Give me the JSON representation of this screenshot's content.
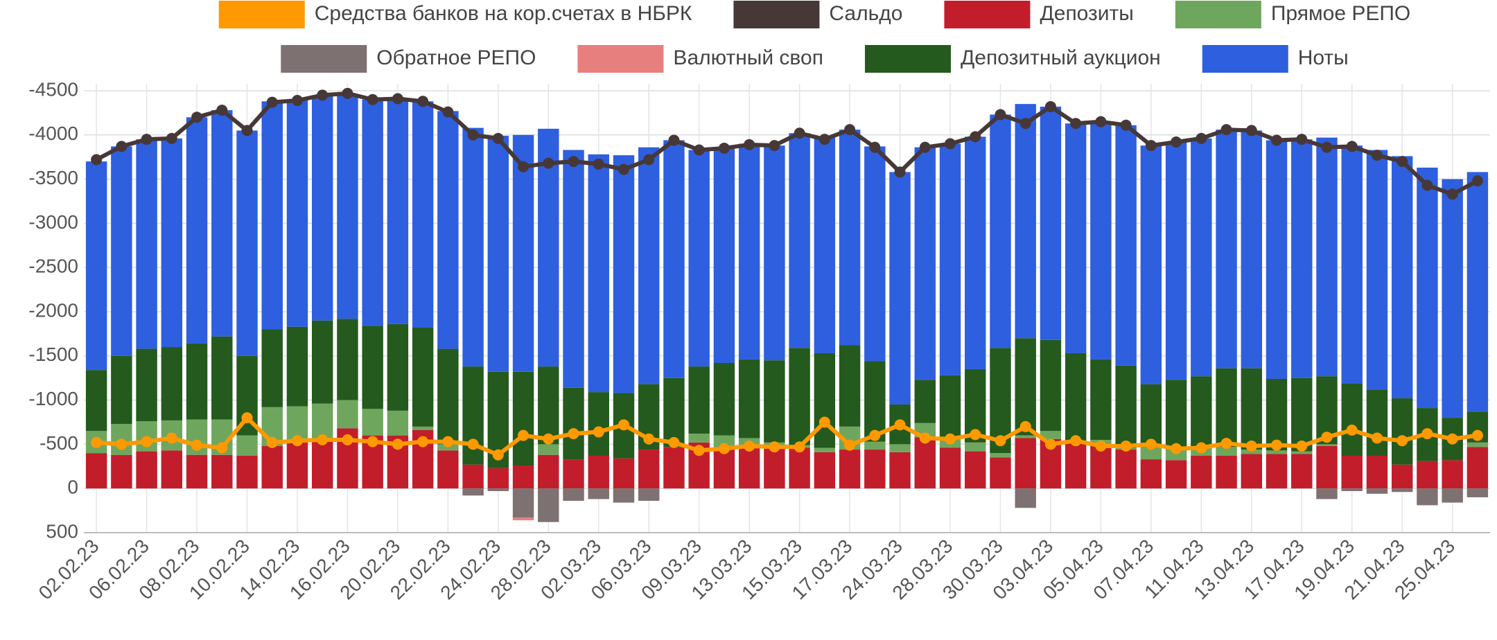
{
  "chart_data": {
    "type": "bar",
    "stacked": true,
    "grid": true,
    "categories": [
      "02.02.23",
      null,
      "06.02.23",
      null,
      "08.02.23",
      null,
      "10.02.23",
      null,
      "14.02.23",
      null,
      "16.02.23",
      null,
      "20.02.23",
      null,
      "22.02.23",
      null,
      "24.02.23",
      null,
      "28.02.23",
      null,
      "02.03.23",
      null,
      "06.03.23",
      null,
      "09.03.23",
      null,
      "13.03.23",
      null,
      "15.03.23",
      null,
      "17.03.23",
      null,
      "24.03.23",
      null,
      "28.03.23",
      null,
      "30.03.23",
      null,
      "03.04.23",
      null,
      "05.04.23",
      null,
      "07.04.23",
      null,
      "11.04.23",
      null,
      "13.04.23",
      null,
      "17.04.23",
      null,
      "19.04.23",
      null,
      "21.04.23",
      null,
      "25.04.23",
      null
    ],
    "ylim": [
      500,
      -4500
    ],
    "yticks": [
      -4500,
      -4000,
      -3500,
      -3000,
      -2500,
      -2000,
      -1500,
      -1000,
      -500,
      0,
      500
    ],
    "series": [
      {
        "name": "Средства банков на кор.счетах в НБРК",
        "type": "line",
        "color": "#ff9900",
        "values": [
          -520,
          -500,
          -530,
          -570,
          -490,
          -460,
          -800,
          -520,
          -540,
          -550,
          -550,
          -530,
          -500,
          -530,
          -530,
          -500,
          -380,
          -600,
          -560,
          -620,
          -640,
          -720,
          -560,
          -520,
          -430,
          -450,
          -480,
          -470,
          -470,
          -750,
          -490,
          -600,
          -720,
          -570,
          -560,
          -610,
          -540,
          -700,
          -500,
          -540,
          -480,
          -480,
          -500,
          -450,
          -460,
          -510,
          -480,
          -490,
          -480,
          -580,
          -660,
          -570,
          -540,
          -620,
          -560,
          -600
        ]
      },
      {
        "name": "Сальдо",
        "type": "line",
        "color": "#473838",
        "values": [
          -3720,
          -3870,
          -3950,
          -3960,
          -4200,
          -4280,
          -4050,
          -4370,
          -4390,
          -4450,
          -4470,
          -4400,
          -4410,
          -4380,
          -4260,
          -4000,
          -3960,
          -3640,
          -3680,
          -3700,
          -3670,
          -3610,
          -3720,
          -3940,
          -3830,
          -3850,
          -3890,
          -3880,
          -4020,
          -3950,
          -4060,
          -3860,
          -3580,
          -3860,
          -3900,
          -3980,
          -4230,
          -4130,
          -4320,
          -4130,
          -4150,
          -4110,
          -3880,
          -3920,
          -3960,
          -4060,
          -4050,
          -3940,
          -3950,
          -3860,
          -3870,
          -3770,
          -3700,
          -3430,
          -3330,
          -3480
        ]
      },
      {
        "name": "Депозиты",
        "type": "bar",
        "color": "#c21d2b",
        "values": [
          -400,
          -380,
          -420,
          -430,
          -380,
          -380,
          -370,
          -480,
          -520,
          -540,
          -680,
          -600,
          -600,
          -660,
          -430,
          -270,
          -230,
          -260,
          -380,
          -330,
          -370,
          -340,
          -440,
          -470,
          -520,
          -460,
          -460,
          -450,
          -460,
          -410,
          -440,
          -440,
          -410,
          -580,
          -460,
          -420,
          -350,
          -570,
          -560,
          -510,
          -490,
          -440,
          -330,
          -320,
          -370,
          -370,
          -390,
          -390,
          -390,
          -480,
          -370,
          -370,
          -270,
          -310,
          -320,
          -470
        ]
      },
      {
        "name": "Прямое РЕПО",
        "type": "bar",
        "color": "#6fa65e",
        "values": [
          -250,
          -350,
          -340,
          -340,
          -400,
          -400,
          -230,
          -440,
          -410,
          -420,
          -320,
          -300,
          -280,
          -40,
          -70,
          0,
          0,
          0,
          -120,
          0,
          0,
          0,
          0,
          0,
          -100,
          -140,
          -110,
          -70,
          -30,
          -50,
          -260,
          -90,
          -90,
          -160,
          -100,
          -100,
          -50,
          -30,
          -90,
          -30,
          -60,
          -20,
          -150,
          -140,
          -100,
          -100,
          -50,
          -40,
          -30,
          -20,
          0,
          0,
          0,
          0,
          0,
          -50
        ]
      },
      {
        "name": "Обратное РЕПО",
        "type": "bar",
        "color": "#7e7171",
        "values": [
          0,
          0,
          0,
          0,
          0,
          0,
          0,
          0,
          0,
          0,
          0,
          0,
          0,
          0,
          0,
          80,
          30,
          330,
          380,
          140,
          120,
          160,
          140,
          0,
          0,
          0,
          0,
          0,
          0,
          0,
          0,
          0,
          0,
          0,
          0,
          0,
          0,
          220,
          0,
          0,
          0,
          0,
          0,
          0,
          0,
          0,
          0,
          0,
          0,
          120,
          30,
          60,
          40,
          190,
          160,
          100
        ]
      },
      {
        "name": "Валютный своп",
        "type": "bar",
        "color": "#e87f7f",
        "values": [
          0,
          0,
          0,
          0,
          0,
          0,
          0,
          0,
          0,
          0,
          0,
          0,
          0,
          0,
          0,
          0,
          0,
          30,
          0,
          0,
          0,
          0,
          0,
          0,
          0,
          0,
          0,
          0,
          0,
          0,
          0,
          0,
          0,
          0,
          0,
          0,
          0,
          0,
          0,
          0,
          0,
          0,
          0,
          0,
          0,
          0,
          0,
          0,
          0,
          0,
          0,
          0,
          0,
          0,
          0,
          0
        ]
      },
      {
        "name": "Депозитный аукцион",
        "type": "bar",
        "color": "#245a1d",
        "values": [
          -690,
          -770,
          -820,
          -830,
          -860,
          -940,
          -900,
          -880,
          -900,
          -940,
          -920,
          -940,
          -980,
          -1120,
          -1080,
          -1110,
          -1090,
          -1060,
          -880,
          -810,
          -720,
          -740,
          -740,
          -780,
          -760,
          -820,
          -890,
          -930,
          -1100,
          -1070,
          -920,
          -910,
          -450,
          -490,
          -720,
          -830,
          -1190,
          -1100,
          -1030,
          -990,
          -910,
          -930,
          -700,
          -770,
          -800,
          -890,
          -920,
          -810,
          -830,
          -770,
          -820,
          -750,
          -750,
          -600,
          -480,
          -350
        ]
      },
      {
        "name": "Ноты",
        "type": "bar",
        "color": "#2e5fdf",
        "values": [
          -2360,
          -2370,
          -2370,
          -2360,
          -2560,
          -2560,
          -2550,
          -2580,
          -2570,
          -2550,
          -2540,
          -2560,
          -2560,
          -2560,
          -2690,
          -2700,
          -2670,
          -2680,
          -2690,
          -2690,
          -2690,
          -2690,
          -2680,
          -2690,
          -2450,
          -2440,
          -2440,
          -2430,
          -2430,
          -2440,
          -2440,
          -2430,
          -2630,
          -2630,
          -2620,
          -2630,
          -2640,
          -2650,
          -2640,
          -2600,
          -2690,
          -2720,
          -2700,
          -2690,
          -2690,
          -2700,
          -2690,
          -2700,
          -2700,
          -2700,
          -2690,
          -2710,
          -2740,
          -2720,
          -2700,
          -2710
        ]
      }
    ]
  }
}
